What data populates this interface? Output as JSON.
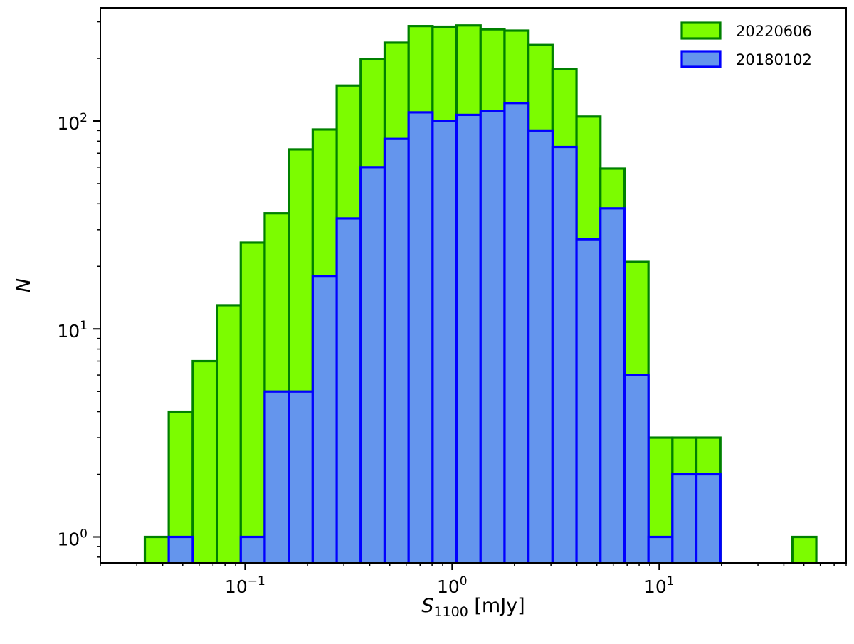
{
  "chart_data": {
    "type": "bar",
    "xscale": "log",
    "yscale": "log",
    "xlim": [
      0.02,
      80
    ],
    "ylim": [
      0.75,
      350
    ],
    "xlabel": {
      "symbol": "S",
      "subscript": "1100",
      "unit": "[mJy]"
    },
    "ylabel": "N",
    "xticks": [
      {
        "base": "10",
        "exp": "−1",
        "value": 0.1
      },
      {
        "base": "10",
        "exp": "0",
        "value": 1
      },
      {
        "base": "10",
        "exp": "1",
        "value": 10
      }
    ],
    "yticks": [
      {
        "base": "10",
        "exp": "0",
        "value": 1
      },
      {
        "base": "10",
        "exp": "1",
        "value": 10
      },
      {
        "base": "10",
        "exp": "2",
        "value": 100
      }
    ],
    "legend_position": "top-right",
    "bin_edges": [
      0.0328,
      0.0428,
      0.0559,
      0.073,
      0.0953,
      0.1244,
      0.1625,
      0.2121,
      0.277,
      0.3616,
      0.4721,
      0.6164,
      0.8048,
      1.0508,
      1.372,
      1.7913,
      2.3388,
      3.0536,
      3.987,
      5.2055,
      6.7965,
      8.8737,
      11.586,
      15.127,
      19.75,
      25.787,
      33.668,
      43.958,
      57.394
    ],
    "series": [
      {
        "name": "20220606",
        "fill": "#7cfc00",
        "stroke": "#008000",
        "values": [
          1,
          4,
          7,
          13,
          26,
          36,
          73,
          91,
          148,
          198,
          238,
          286,
          284,
          288,
          276,
          272,
          232,
          178,
          105,
          59,
          21,
          3,
          3,
          3,
          0,
          0,
          0,
          1
        ]
      },
      {
        "name": "20180102",
        "fill": "#6495ed",
        "stroke": "#0000ff",
        "values": [
          0,
          1,
          0,
          0,
          1,
          5,
          5,
          18,
          34,
          60,
          82,
          110,
          100,
          107,
          112,
          122,
          90,
          75,
          27,
          38,
          6,
          1,
          2,
          2,
          0,
          0,
          0,
          0
        ]
      }
    ]
  }
}
